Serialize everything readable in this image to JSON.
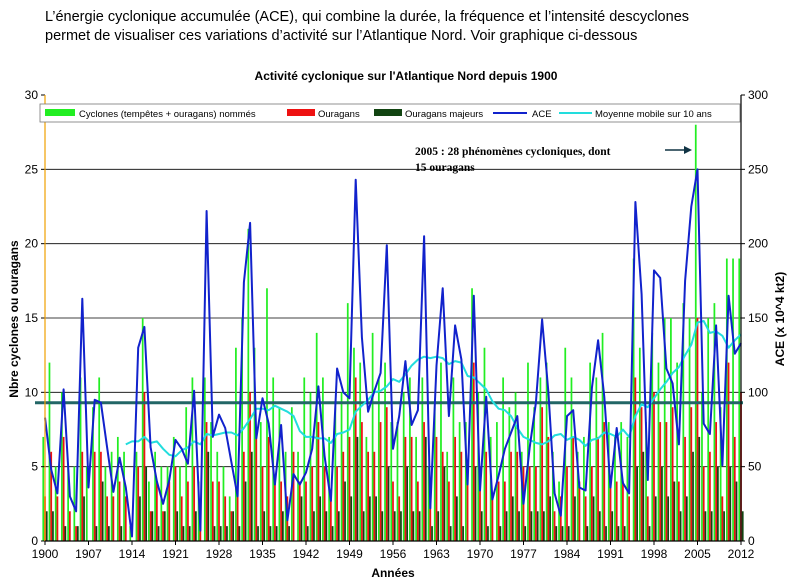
{
  "intro": {
    "line1": "L’énergie cyclonique accumulée (ACE), qui combine la durée, la fréquence  et l’intensité descyclones",
    "line2": "permet de visualiser ces variations d’activité sur l’Atlantique Nord. Voir graphique ci-dessous"
  },
  "colors": {
    "named": "#22ee22",
    "hurricanes": "#ee1111",
    "major": "#114411",
    "ace": "#1122cc",
    "moving_avg": "#22dddd",
    "reference_line": "#226666",
    "axis": "#000000",
    "left_axis_line": "#f0a000"
  },
  "chart_data": {
    "type": "bar",
    "title": "Activité cyclonique sur l'Atlantique Nord depuis 1900",
    "xlabel": "Années",
    "ylabel_left": "Nbre cyclones ou ouragans",
    "ylabel_right": "ACE (x 10^4 kt2)",
    "ylim_left": [
      0,
      30
    ],
    "ylim_right": [
      0,
      300
    ],
    "yticks_left": [
      "0",
      "5",
      "10",
      "15",
      "20",
      "25",
      "30"
    ],
    "yticks_right": [
      "0",
      "50",
      "100",
      "150",
      "200",
      "250",
      "300"
    ],
    "xticks": [
      "1900",
      "1907",
      "1914",
      "1921",
      "1928",
      "1935",
      "1942",
      "1949",
      "1956",
      "1963",
      "1970",
      "1977",
      "1984",
      "1991",
      "1998",
      "2005",
      "2012"
    ],
    "grid": "horizontal",
    "legend_position": "top",
    "reference_level_ace": 93,
    "x": [
      1900,
      1901,
      1902,
      1903,
      1904,
      1905,
      1906,
      1907,
      1908,
      1909,
      1910,
      1911,
      1912,
      1913,
      1914,
      1915,
      1916,
      1917,
      1918,
      1919,
      1920,
      1921,
      1922,
      1923,
      1924,
      1925,
      1926,
      1927,
      1928,
      1929,
      1930,
      1931,
      1932,
      1933,
      1934,
      1935,
      1936,
      1937,
      1938,
      1939,
      1940,
      1941,
      1942,
      1943,
      1944,
      1945,
      1946,
      1947,
      1948,
      1949,
      1950,
      1951,
      1952,
      1953,
      1954,
      1955,
      1956,
      1957,
      1958,
      1959,
      1960,
      1961,
      1962,
      1963,
      1964,
      1965,
      1966,
      1967,
      1968,
      1969,
      1970,
      1971,
      1972,
      1973,
      1974,
      1975,
      1976,
      1977,
      1978,
      1979,
      1980,
      1981,
      1982,
      1983,
      1984,
      1985,
      1986,
      1987,
      1988,
      1989,
      1990,
      1991,
      1992,
      1993,
      1994,
      1995,
      1996,
      1997,
      1998,
      1999,
      2000,
      2001,
      2002,
      2003,
      2004,
      2005,
      2006,
      2007,
      2008,
      2009,
      2010,
      2011,
      2012
    ],
    "series": [
      {
        "name": "Cyclones (tempêtes + ouragans) nommés",
        "values": [
          7,
          12,
          5,
          10,
          5,
          5,
          11,
          5,
          9,
          11,
          5,
          6,
          7,
          6,
          1,
          6,
          15,
          4,
          6,
          5,
          5,
          7,
          5,
          9,
          11,
          4,
          11,
          8,
          6,
          5,
          3,
          13,
          15,
          21,
          13,
          8,
          17,
          11,
          9,
          6,
          9,
          6,
          11,
          10,
          14,
          11,
          7,
          9,
          10,
          16,
          13,
          12,
          7,
          14,
          11,
          12,
          8,
          8,
          10,
          11,
          7,
          11,
          5,
          9,
          12,
          6,
          11,
          8,
          8,
          17,
          10,
          13,
          7,
          8,
          11,
          9,
          10,
          6,
          12,
          9,
          11,
          12,
          6,
          4,
          13,
          11,
          6,
          7,
          12,
          11,
          14,
          8,
          7,
          8,
          7,
          19,
          13,
          8,
          14,
          12,
          15,
          15,
          12,
          16,
          15,
          28,
          10,
          15,
          16,
          9,
          19,
          19,
          19
        ]
      },
      {
        "name": "Ouragans",
        "values": [
          3,
          6,
          3,
          7,
          2,
          1,
          6,
          0,
          6,
          6,
          3,
          3,
          4,
          3,
          0,
          5,
          10,
          2,
          4,
          2,
          4,
          5,
          3,
          4,
          5,
          1,
          8,
          4,
          4,
          3,
          2,
          3,
          6,
          10,
          7,
          5,
          7,
          4,
          4,
          3,
          6,
          4,
          4,
          5,
          8,
          5,
          3,
          5,
          6,
          7,
          11,
          8,
          6,
          6,
          8,
          9,
          4,
          3,
          7,
          7,
          4,
          8,
          3,
          7,
          6,
          4,
          7,
          6,
          5,
          12,
          5,
          6,
          3,
          4,
          4,
          6,
          6,
          5,
          5,
          5,
          9,
          7,
          2,
          3,
          5,
          7,
          4,
          3,
          5,
          7,
          8,
          4,
          4,
          4,
          3,
          11,
          9,
          3,
          10,
          8,
          8,
          9,
          4,
          7,
          9,
          15,
          5,
          6,
          8,
          3,
          12,
          7,
          10
        ]
      },
      {
        "name": "Ouragans majeurs",
        "values": [
          2,
          2,
          0,
          1,
          0,
          1,
          3,
          0,
          1,
          4,
          1,
          0,
          1,
          0,
          0,
          3,
          5,
          2,
          1,
          2,
          0,
          2,
          1,
          1,
          2,
          0,
          6,
          1,
          1,
          1,
          2,
          1,
          4,
          6,
          1,
          2,
          1,
          1,
          2,
          1,
          0,
          3,
          1,
          2,
          3,
          2,
          1,
          2,
          4,
          3,
          7,
          2,
          3,
          3,
          2,
          5,
          2,
          2,
          5,
          2,
          2,
          7,
          1,
          2,
          5,
          1,
          3,
          1,
          0,
          5,
          2,
          1,
          0,
          1,
          2,
          3,
          2,
          1,
          2,
          2,
          2,
          3,
          1,
          1,
          1,
          3,
          0,
          1,
          3,
          2,
          1,
          2,
          1,
          1,
          0,
          5,
          6,
          1,
          3,
          5,
          3,
          4,
          2,
          3,
          6,
          7,
          2,
          2,
          5,
          2,
          5,
          4,
          2
        ]
      },
      {
        "name": "ACE",
        "values": [
          83,
          48,
          32,
          102,
          30,
          20,
          163,
          36,
          95,
          93,
          63,
          33,
          56,
          36,
          3,
          130,
          144,
          63,
          40,
          25,
          41,
          68,
          62,
          52,
          101,
          7,
          222,
          70,
          85,
          76,
          53,
          30,
          174,
          214,
          69,
          96,
          79,
          38,
          78,
          14,
          45,
          38,
          46,
          62,
          104,
          57,
          27,
          116,
          100,
          96,
          243,
          137,
          87,
          101,
          113,
          199,
          62,
          84,
          121,
          78,
          88,
          205,
          22,
          118,
          170,
          84,
          145,
          122,
          38,
          165,
          34,
          97,
          28,
          44,
          62,
          73,
          84,
          25,
          63,
          93,
          149,
          100,
          32,
          17,
          84,
          88,
          36,
          34,
          103,
          135,
          97,
          36,
          76,
          39,
          32,
          228,
          166,
          41,
          182,
          177,
          116,
          106,
          65,
          175,
          225,
          250,
          79,
          72,
          145,
          51,
          165,
          126,
          133
        ]
      },
      {
        "name": "Moyenne mobile sur 10 ans",
        "values": [
          null,
          null,
          null,
          null,
          null,
          null,
          null,
          null,
          null,
          null,
          null,
          null,
          null,
          65,
          67,
          67,
          70,
          66,
          67,
          62,
          58,
          57,
          61,
          63,
          67,
          65,
          72,
          71,
          72,
          73,
          73,
          71,
          76,
          82,
          89,
          89,
          88,
          91,
          89,
          87,
          84,
          74,
          70,
          70,
          69,
          69,
          66,
          72,
          73,
          75,
          87,
          91,
          95,
          100,
          101,
          104,
          109,
          107,
          112,
          118,
          122,
          124,
          123,
          124,
          123,
          119,
          121,
          120,
          111,
          110,
          106,
          102,
          94,
          89,
          88,
          84,
          76,
          70,
          68,
          66,
          65,
          67,
          71,
          72,
          68,
          70,
          68,
          64,
          68,
          69,
          73,
          72,
          70,
          75,
          70,
          84,
          92,
          90,
          96,
          102,
          107,
          113,
          117,
          125,
          132,
          147,
          148,
          140,
          141,
          138,
          130,
          135,
          139
        ]
      }
    ],
    "annotation": {
      "line1": "2005 : 28 phénomènes cycloniques, dont",
      "line2": "15 ouragans"
    }
  }
}
